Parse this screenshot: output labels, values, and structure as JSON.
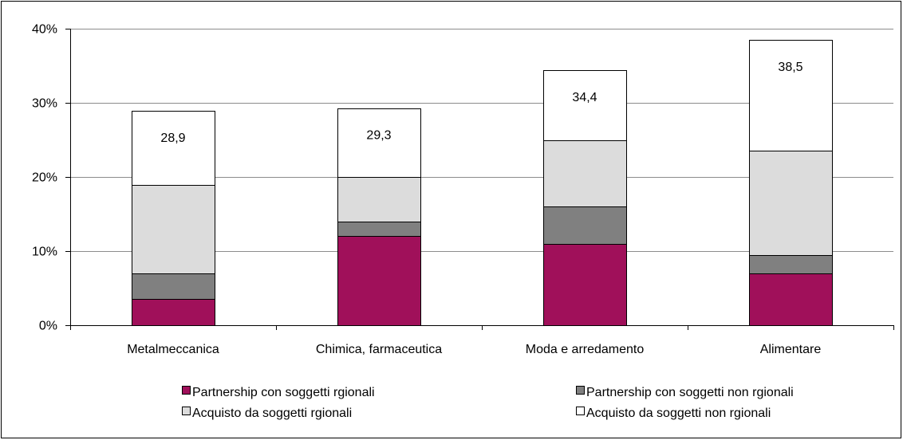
{
  "chart_data": {
    "type": "bar",
    "stacked": true,
    "categories": [
      "Metalmeccanica",
      "Chimica, farmaceutica",
      "Moda e arredamento",
      "Alimentare"
    ],
    "series": [
      {
        "name": "Partnership con soggetti rgionali",
        "values": [
          3.5,
          12.0,
          11.0,
          7.0
        ],
        "color": "#A0105A"
      },
      {
        "name": "Partnership con soggetti non rgionali",
        "values": [
          3.5,
          2.0,
          5.0,
          2.5
        ],
        "color": "#808080"
      },
      {
        "name": "Acquisto da soggetti rgionali",
        "values": [
          11.9,
          6.0,
          9.0,
          14.0
        ],
        "color": "#DCDCDC"
      },
      {
        "name": "Acquisto da soggetti non rgionali",
        "values": [
          10.0,
          9.3,
          9.4,
          15.0
        ],
        "color": "#FFFFFF"
      }
    ],
    "totals": [
      28.9,
      29.3,
      34.4,
      38.5
    ],
    "total_labels": [
      "28,9",
      "29,3",
      "34,4",
      "38,5"
    ],
    "ylim": [
      0,
      40
    ],
    "yticks": [
      0,
      10,
      20,
      30,
      40
    ],
    "ytick_labels": [
      "0%",
      "10%",
      "20%",
      "30%",
      "40%"
    ],
    "grid": true,
    "legend_position": "bottom",
    "xlabel": "",
    "ylabel": ""
  }
}
